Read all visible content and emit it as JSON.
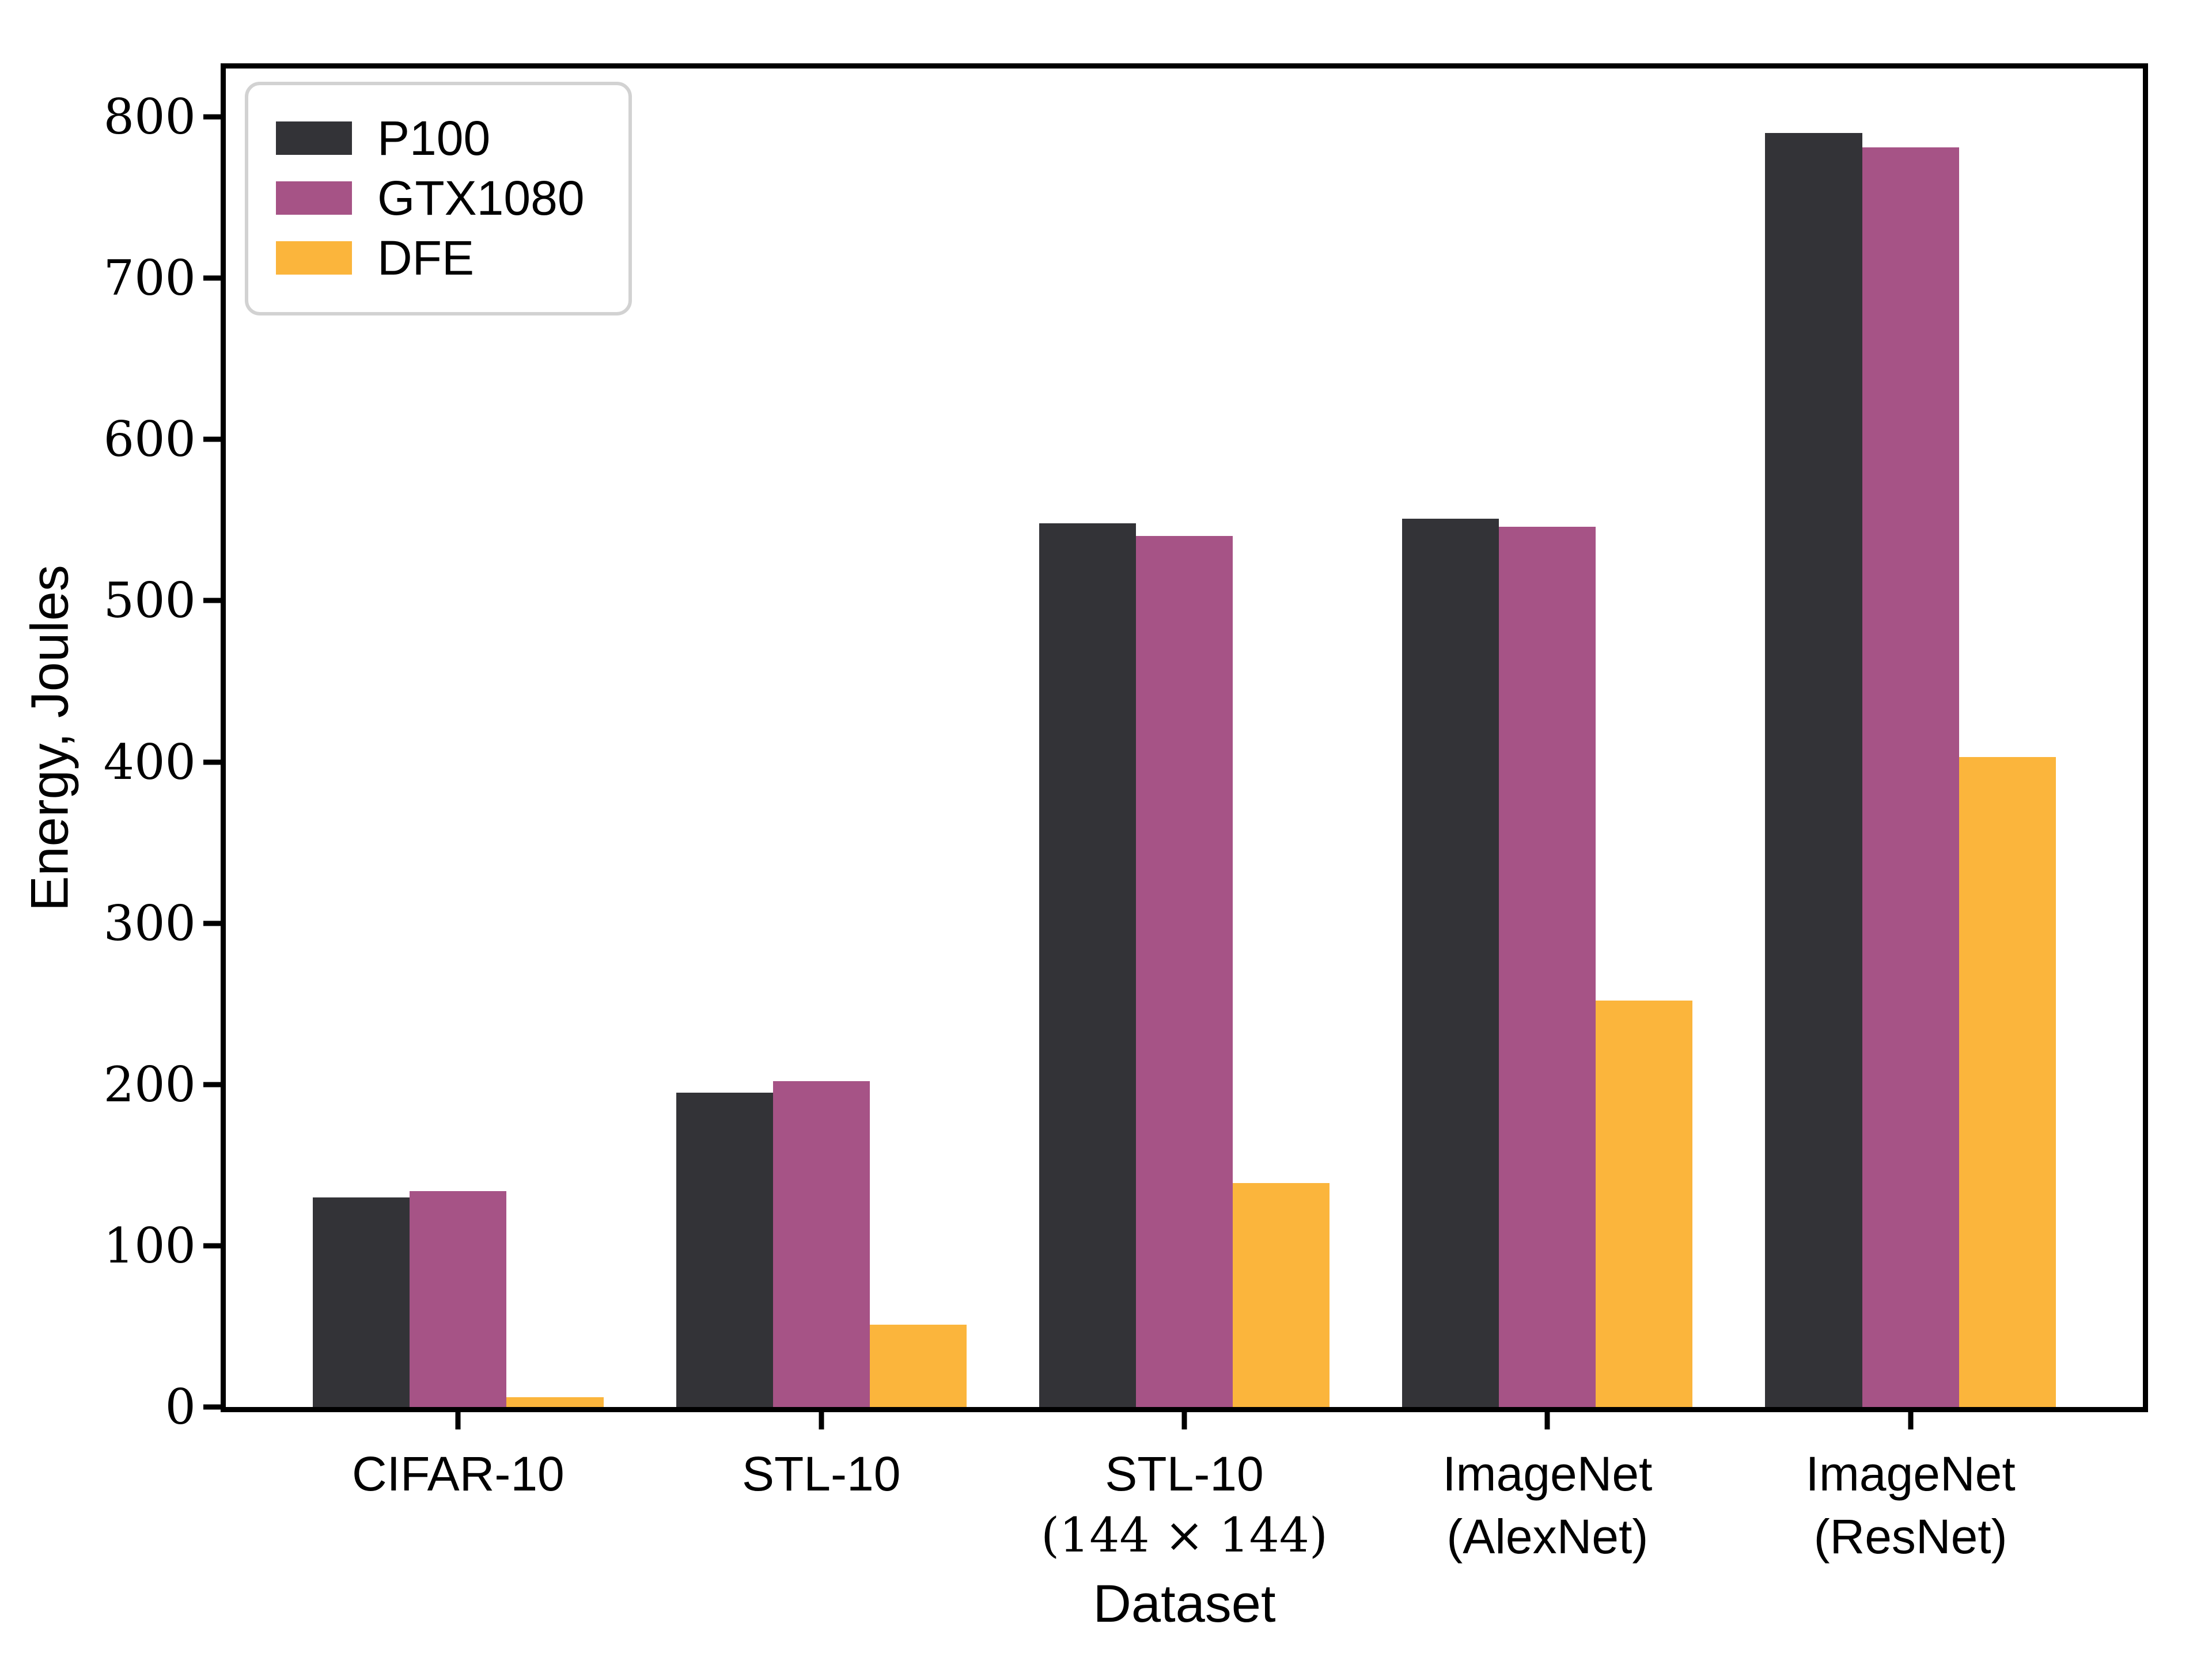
{
  "chart_data": {
    "type": "bar",
    "title": "",
    "xlabel": "Dataset",
    "ylabel": "Energy, Joules",
    "categories": [
      {
        "label": "CIFAR-10",
        "sublabel": "",
        "sublabel_style": ""
      },
      {
        "label": "STL-10",
        "sublabel": "",
        "sublabel_style": ""
      },
      {
        "label": "STL-10",
        "sublabel": "(144 × 144)",
        "sublabel_style": "math"
      },
      {
        "label": "ImageNet",
        "sublabel": "(AlexNet)",
        "sublabel_style": ""
      },
      {
        "label": "ImageNet",
        "sublabel": "(ResNet)",
        "sublabel_style": ""
      }
    ],
    "series": [
      {
        "name": "P100",
        "color": "#333337",
        "values": [
          130,
          195,
          548,
          551,
          790
        ]
      },
      {
        "name": "GTX1080",
        "color": "#a65386",
        "values": [
          134,
          202,
          540,
          546,
          781
        ]
      },
      {
        "name": "DFE",
        "color": "#fbb53c",
        "values": [
          6,
          51,
          139,
          252,
          403
        ]
      }
    ],
    "ylim": [
      0,
      830
    ],
    "yticks": [
      0,
      100,
      200,
      300,
      400,
      500,
      600,
      700,
      800
    ],
    "xlim_units": [
      -0.64,
      4.64
    ],
    "bar_width_units": 0.2667,
    "legend_position": "upper left",
    "grid": false,
    "spine_color": "#000000",
    "legend_border_color": "#d2d2d2",
    "background_color": "#ffffff"
  }
}
